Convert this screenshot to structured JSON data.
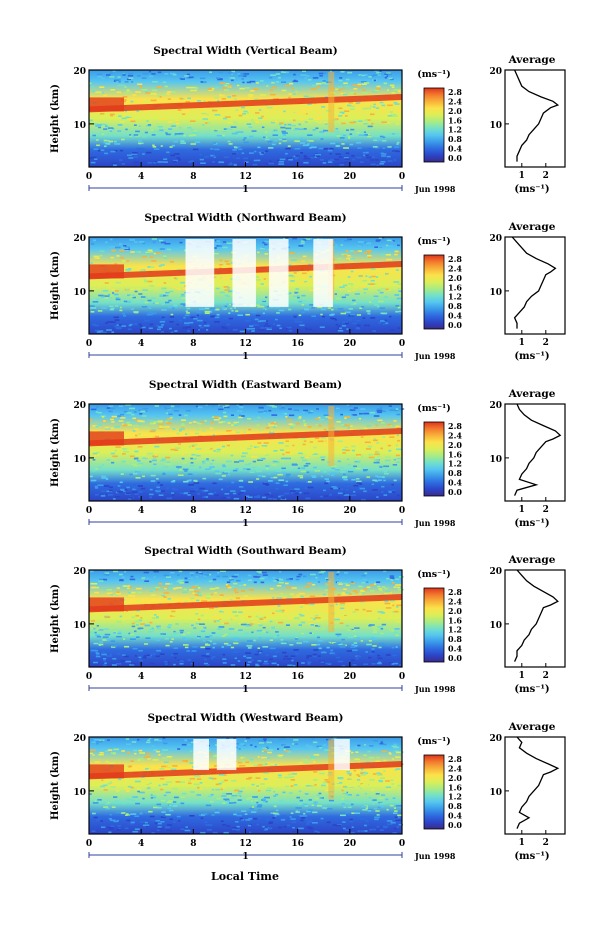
{
  "figure": {
    "xlabel": "Local Time",
    "ylabel": "Height (km)",
    "date_label": "Jun 1998",
    "day_label": "1",
    "unit_label": "(ms⁻¹)",
    "avg_title": "Average",
    "avg_xlabel": "(ms⁻¹)",
    "colorbar_ticks": [
      "2.8",
      "2.4",
      "2.0",
      "1.6",
      "1.2",
      "0.8",
      "0.4",
      "0.0"
    ]
  },
  "colors": {
    "scale": [
      "#3a2a8a",
      "#2c45c8",
      "#2f6be0",
      "#3b9bea",
      "#56c6f0",
      "#74e0c8",
      "#a8ec84",
      "#dcee58",
      "#fce24a",
      "#f8b23a",
      "#f27a2c",
      "#e0331e"
    ],
    "band_peak": "#e23a1c",
    "frame": "#000000"
  },
  "chart_data": [
    {
      "type": "heatmap",
      "title": "Spectral Width (Vertical Beam)",
      "xlabel": "",
      "ylabel": "Height (km)",
      "x_ticks": [
        "0",
        "4",
        "8",
        "12",
        "16",
        "20",
        "0"
      ],
      "y_ticks": [
        "20",
        "10"
      ],
      "xlim": [
        0,
        24
      ],
      "ylim": [
        2,
        20
      ],
      "colorbar": {
        "unit": "ms^-1",
        "range": [
          0,
          2.8
        ]
      },
      "average_profile": {
        "title": "Average",
        "xlabel": "(ms^-1)",
        "x_ticks": [
          "1",
          "2"
        ],
        "y_ticks": [
          "20",
          "10"
        ],
        "x": [
          0.7,
          0.8,
          0.9,
          1.0,
          1.3,
          1.8,
          2.3,
          2.5,
          2.2,
          1.9,
          1.8,
          1.7,
          1.5,
          1.3,
          1.2,
          1.0,
          0.9,
          0.8,
          0.8
        ],
        "y": [
          20,
          19,
          18,
          17,
          16,
          15,
          14.2,
          13.5,
          13,
          12,
          11,
          10,
          9,
          8,
          7,
          6,
          5,
          4,
          3
        ]
      }
    },
    {
      "type": "heatmap",
      "title": "Spectral Width (Northward Beam)",
      "xlabel": "",
      "ylabel": "Height (km)",
      "x_ticks": [
        "0",
        "4",
        "8",
        "12",
        "16",
        "20",
        "0"
      ],
      "y_ticks": [
        "20",
        "10"
      ],
      "xlim": [
        0,
        24
      ],
      "ylim": [
        2,
        20
      ],
      "colorbar": {
        "unit": "ms^-1",
        "range": [
          0,
          2.8
        ]
      },
      "average_profile": {
        "title": "Average",
        "xlabel": "(ms^-1)",
        "x_ticks": [
          "1",
          "2"
        ],
        "y_ticks": [
          "20",
          "10"
        ],
        "x": [
          0.6,
          0.8,
          1.0,
          1.2,
          1.6,
          2.1,
          2.4,
          2.2,
          2.0,
          1.9,
          1.8,
          1.7,
          1.4,
          1.2,
          1.1,
          0.9,
          0.7,
          0.8,
          0.8
        ],
        "y": [
          20,
          19,
          18,
          17,
          16,
          15,
          14.2,
          13.5,
          13,
          12,
          11,
          10,
          9,
          8,
          7,
          6,
          5,
          4,
          3
        ]
      }
    },
    {
      "type": "heatmap",
      "title": "Spectral Width (Eastward Beam)",
      "xlabel": "",
      "ylabel": "Height (km)",
      "x_ticks": [
        "0",
        "4",
        "8",
        "12",
        "16",
        "20",
        "0"
      ],
      "y_ticks": [
        "20",
        "10"
      ],
      "xlim": [
        0,
        24
      ],
      "ylim": [
        2,
        20
      ],
      "colorbar": {
        "unit": "ms^-1",
        "range": [
          0,
          2.8
        ]
      },
      "average_profile": {
        "title": "Average",
        "xlabel": "(ms^-1)",
        "x_ticks": [
          "1",
          "2"
        ],
        "y_ticks": [
          "20",
          "10"
        ],
        "x": [
          0.8,
          0.9,
          1.1,
          1.4,
          1.9,
          2.4,
          2.6,
          2.3,
          2.0,
          1.8,
          1.6,
          1.5,
          1.3,
          1.2,
          1.0,
          0.9,
          1.6,
          0.8,
          0.7
        ],
        "y": [
          20,
          19,
          18,
          17,
          16,
          15,
          14.2,
          13.5,
          13,
          12,
          11,
          10,
          9,
          8,
          7,
          6,
          5,
          4,
          3
        ]
      }
    },
    {
      "type": "heatmap",
      "title": "Spectral Width (Southward Beam)",
      "xlabel": "",
      "ylabel": "Height (km)",
      "x_ticks": [
        "0",
        "4",
        "8",
        "12",
        "16",
        "20",
        "0"
      ],
      "y_ticks": [
        "20",
        "10"
      ],
      "xlim": [
        0,
        24
      ],
      "ylim": [
        2,
        20
      ],
      "colorbar": {
        "unit": "ms^-1",
        "range": [
          0,
          2.8
        ]
      },
      "average_profile": {
        "title": "Average",
        "xlabel": "(ms^-1)",
        "x_ticks": [
          "1",
          "2"
        ],
        "y_ticks": [
          "20",
          "10"
        ],
        "x": [
          0.8,
          1.0,
          1.2,
          1.5,
          1.9,
          2.3,
          2.5,
          2.2,
          1.9,
          1.8,
          1.7,
          1.6,
          1.4,
          1.3,
          1.1,
          1.0,
          0.8,
          0.8,
          0.7
        ],
        "y": [
          20,
          19,
          18,
          17,
          16,
          15,
          14.2,
          13.5,
          13,
          12,
          11,
          10,
          9,
          8,
          7,
          6,
          5,
          4,
          3
        ]
      }
    },
    {
      "type": "heatmap",
      "title": "Spectral Width (Westward Beam)",
      "xlabel": "Local Time",
      "ylabel": "Height (km)",
      "x_ticks": [
        "0",
        "4",
        "8",
        "12",
        "16",
        "20",
        "0"
      ],
      "y_ticks": [
        "20",
        "10"
      ],
      "xlim": [
        0,
        24
      ],
      "ylim": [
        2,
        20
      ],
      "colorbar": {
        "unit": "ms^-1",
        "range": [
          0,
          2.8
        ]
      },
      "average_profile": {
        "title": "Average",
        "xlabel": "(ms^-1)",
        "x_ticks": [
          "1",
          "2"
        ],
        "y_ticks": [
          "20",
          "10"
        ],
        "x": [
          0.8,
          1.0,
          0.9,
          1.2,
          1.6,
          2.1,
          2.5,
          2.2,
          1.9,
          1.8,
          1.7,
          1.5,
          1.3,
          1.2,
          1.0,
          0.9,
          1.3,
          0.9,
          0.8
        ],
        "y": [
          20,
          19,
          18,
          17,
          16,
          15,
          14.2,
          13.5,
          13,
          12,
          11,
          10,
          9,
          8,
          7,
          6,
          5,
          4,
          3
        ]
      }
    }
  ]
}
